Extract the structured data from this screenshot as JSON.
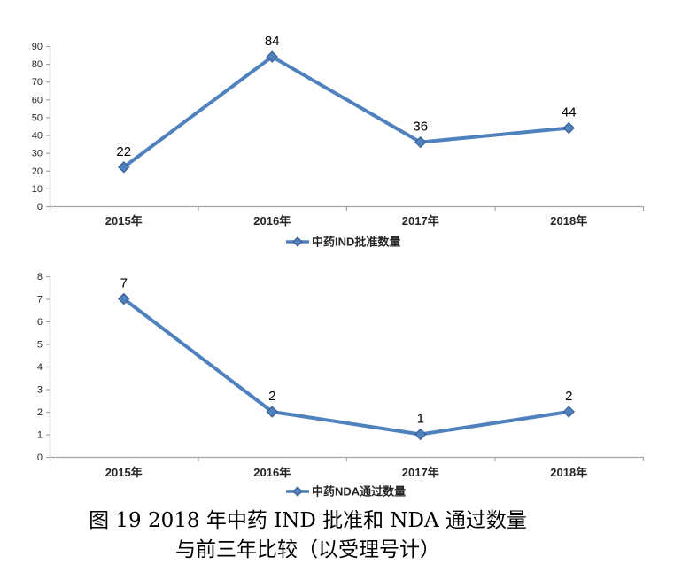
{
  "caption": {
    "line1": "图 19  2018 年中药 IND 批准和 NDA 通过数量",
    "line2": "与前三年比较（以受理号计）"
  },
  "colors": {
    "line": "#4E81BD",
    "marker_fill": "#4E81BD",
    "marker_edge": "#36598C",
    "axis": "#A6A6A6",
    "text": "#262626"
  },
  "chart_data": [
    {
      "type": "line",
      "title": "",
      "xlabel": "",
      "ylabel": "",
      "categories": [
        "2015年",
        "2016年",
        "2017年",
        "2018年"
      ],
      "series": [
        {
          "name": "中药IND批准数量",
          "values": [
            22,
            84,
            36,
            44
          ]
        }
      ],
      "data_labels": [
        22,
        84,
        36,
        44
      ],
      "ylim": [
        0,
        90
      ],
      "ytick_step": 10,
      "yticks": [
        0,
        10,
        20,
        30,
        40,
        50,
        60,
        70,
        80,
        90
      ],
      "grid": false,
      "legend_position": "bottom",
      "marker": "diamond"
    },
    {
      "type": "line",
      "title": "",
      "xlabel": "",
      "ylabel": "",
      "categories": [
        "2015年",
        "2016年",
        "2017年",
        "2018年"
      ],
      "series": [
        {
          "name": "中药NDA通过数量",
          "values": [
            7,
            2,
            1,
            2
          ]
        }
      ],
      "data_labels": [
        7,
        2,
        1,
        2
      ],
      "ylim": [
        0,
        8
      ],
      "ytick_step": 1,
      "yticks": [
        0,
        1,
        2,
        3,
        4,
        5,
        6,
        7,
        8
      ],
      "grid": false,
      "legend_position": "bottom",
      "marker": "diamond"
    }
  ]
}
